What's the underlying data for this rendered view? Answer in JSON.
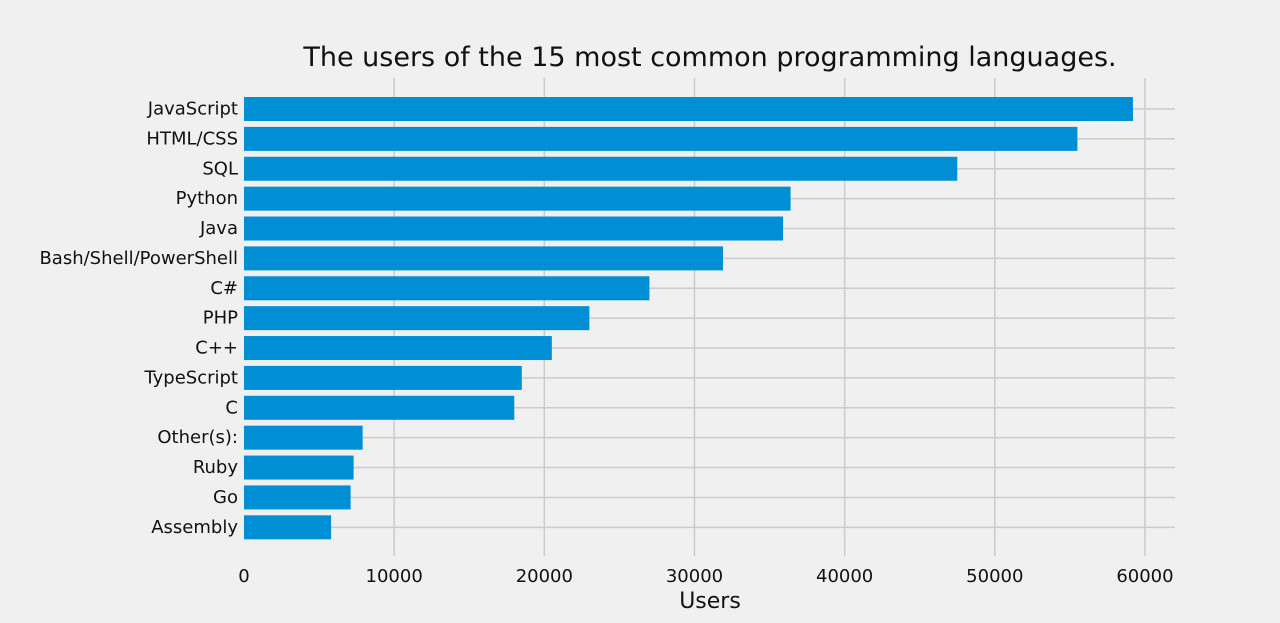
{
  "chart_data": {
    "type": "bar",
    "orientation": "horizontal",
    "title": "The users of the 15 most common programming languages.",
    "xlabel": "Users",
    "ylabel": "",
    "categories": [
      "JavaScript",
      "HTML/CSS",
      "SQL",
      "Python",
      "Java",
      "Bash/Shell/PowerShell",
      "C#",
      "PHP",
      "C++",
      "TypeScript",
      "C",
      "Other(s):",
      "Ruby",
      "Go",
      "Assembly"
    ],
    "values": [
      59200,
      55500,
      47500,
      36400,
      35900,
      31900,
      27000,
      23000,
      20500,
      18500,
      18000,
      7900,
      7300,
      7100,
      5800
    ],
    "xlim": [
      0,
      62000
    ],
    "x_ticks": [
      "0",
      "10000",
      "20000",
      "30000",
      "40000",
      "50000",
      "60000"
    ],
    "grid": true,
    "bar_color": "#008fd5",
    "grid_color": "#cbcbcb",
    "background_color": "#f0f0f0"
  }
}
